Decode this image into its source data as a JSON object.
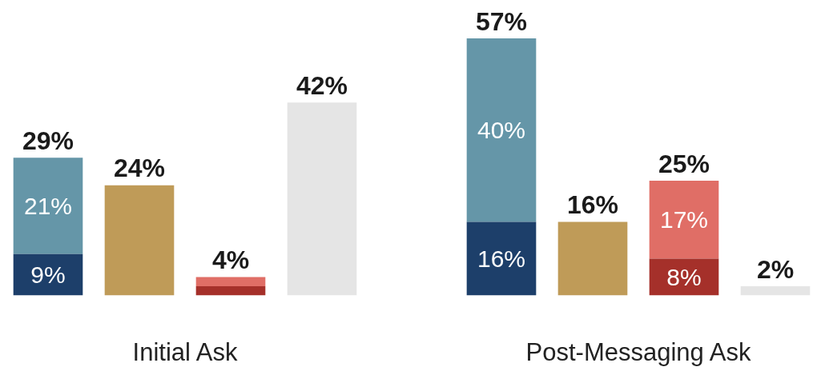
{
  "chart_data": [
    {
      "type": "bar",
      "stacked": true,
      "categories": [
        null,
        null,
        null,
        null
      ],
      "xlabel": "Initial Ask",
      "series": [
        {
          "colors": [
            "#1d3f6a",
            "#bf9b58",
            "#a5302a",
            "#e5e5e5"
          ],
          "values": [
            9,
            24,
            2,
            42
          ],
          "value_labels": [
            "9%",
            null,
            null,
            null
          ]
        },
        {
          "colors": [
            "#6596a8",
            "#bf9b58",
            "#e06e66",
            "#e5e5e5"
          ],
          "values": [
            21,
            0,
            2,
            0
          ],
          "value_labels": [
            "21%",
            null,
            null,
            null
          ]
        }
      ],
      "totals": [
        "29%",
        "24%",
        "4%",
        "42%"
      ],
      "legend": false
    },
    {
      "type": "bar",
      "stacked": true,
      "categories": [
        null,
        null,
        null,
        null
      ],
      "xlabel": "Post-Messaging Ask",
      "series": [
        {
          "colors": [
            "#1d3f6a",
            "#bf9b58",
            "#a5302a",
            "#e5e5e5"
          ],
          "values": [
            16,
            16,
            8,
            2
          ],
          "value_labels": [
            "16%",
            null,
            "8%",
            null
          ]
        },
        {
          "colors": [
            "#6596a8",
            "#bf9b58",
            "#e06e66",
            "#e5e5e5"
          ],
          "values": [
            40,
            0,
            17,
            0
          ],
          "value_labels": [
            "40%",
            null,
            "17%",
            null
          ]
        }
      ],
      "totals": [
        "57%",
        "16%",
        "25%",
        "2%"
      ],
      "legend": false
    }
  ]
}
